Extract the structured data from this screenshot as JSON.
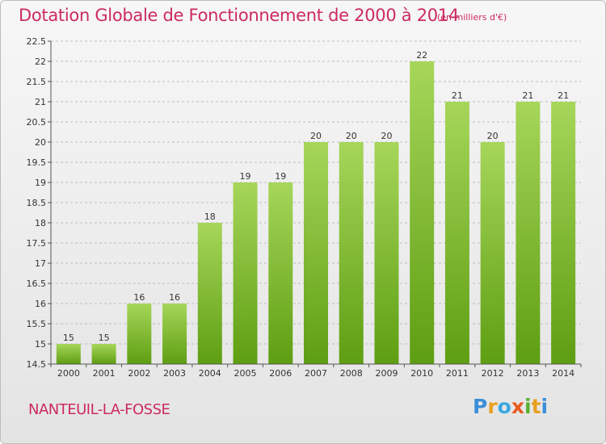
{
  "header": {
    "title": "Dotation Globale de Fonctionnement de 2000 à 2014",
    "subtitle": "(en milliers d'€)"
  },
  "footer": {
    "city": "NANTEUIL-LA-FOSSE",
    "logo_text": "Proxiti"
  },
  "colors": {
    "title": "#cc2a62",
    "bar_top": "#a6d65a",
    "bar_bottom": "#5e9e12",
    "grid": "#bdbdbd"
  },
  "chart_data": {
    "type": "bar",
    "categories": [
      "2000",
      "2001",
      "2002",
      "2003",
      "2004",
      "2005",
      "2006",
      "2007",
      "2008",
      "2009",
      "2010",
      "2011",
      "2012",
      "2013",
      "2014"
    ],
    "values": [
      15,
      15,
      16,
      16,
      18,
      19,
      19,
      20,
      20,
      20,
      22,
      21,
      20,
      21,
      21
    ],
    "data_labels": [
      "15",
      "15",
      "16",
      "16",
      "18",
      "19",
      "19",
      "20",
      "20",
      "20",
      "22",
      "21",
      "20",
      "21",
      "21"
    ],
    "y_ticks": [
      "14.5",
      "15",
      "15.5",
      "16",
      "16.5",
      "17",
      "17.5",
      "18",
      "18.5",
      "19",
      "19.5",
      "20",
      "20.5",
      "21",
      "21.5",
      "22",
      "22.5"
    ],
    "ylim": [
      14.5,
      22.5
    ],
    "grid": "horizontal-dashed",
    "legend": "none"
  }
}
